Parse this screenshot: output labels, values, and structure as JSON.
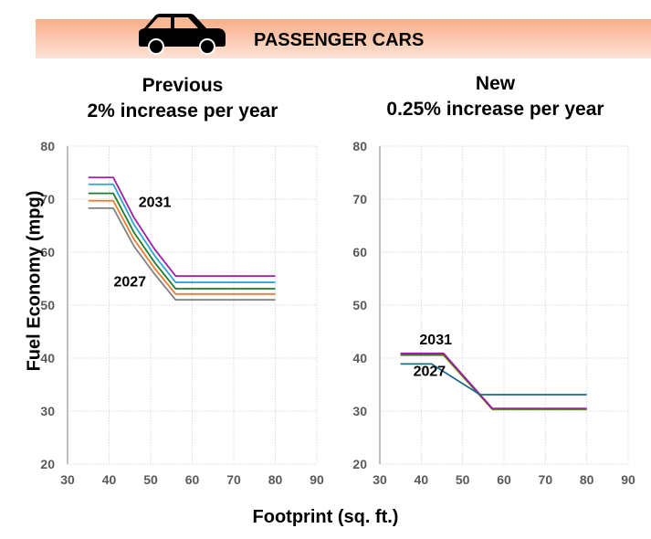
{
  "header": {
    "title": "PASSENGER CARS",
    "icon": "car-icon",
    "band_color": "#f8ae88"
  },
  "axes": {
    "ylabel": "Fuel Economy (mpg)",
    "xlabel": "Footprint (sq. ft.)"
  },
  "chart_data": [
    {
      "type": "line",
      "title_line1": "Previous",
      "title_line2": "2% increase per year",
      "xlim": [
        30,
        90
      ],
      "ylim": [
        20,
        80
      ],
      "xticks": [
        30,
        40,
        50,
        60,
        70,
        80,
        90
      ],
      "yticks": [
        20,
        30,
        40,
        50,
        60,
        70,
        80
      ],
      "grid": true,
      "annotations": [
        {
          "text": "2031",
          "x": 51,
          "y": 68.5
        },
        {
          "text": "2027",
          "x": 45,
          "y": 53.5
        }
      ],
      "x": [
        35,
        41,
        46,
        51,
        56,
        80
      ],
      "series": [
        {
          "color": "#9e1fa6",
          "values": [
            74.1,
            74.1,
            66.5,
            60.5,
            55.5,
            55.5
          ]
        },
        {
          "color": "#2aa7d9",
          "values": [
            72.8,
            72.8,
            65.2,
            59.3,
            54.3,
            54.3
          ]
        },
        {
          "color": "#1f7a2a",
          "values": [
            71.1,
            71.1,
            63.7,
            58.0,
            53.1,
            53.1
          ]
        },
        {
          "color": "#f07a33",
          "values": [
            69.7,
            69.7,
            62.4,
            56.9,
            52.1,
            52.1
          ]
        },
        {
          "color": "#808080",
          "values": [
            68.3,
            68.3,
            61.1,
            55.8,
            51.0,
            51.0
          ]
        }
      ]
    },
    {
      "type": "line",
      "title_line1": "New",
      "title_line2": "0.25% increase per year",
      "xlim": [
        30,
        90
      ],
      "ylim": [
        20,
        80
      ],
      "xticks": [
        30,
        40,
        50,
        60,
        70,
        80,
        90
      ],
      "yticks": [
        20,
        30,
        40,
        50,
        60,
        70,
        80
      ],
      "grid": true,
      "annotations": [
        {
          "text": "2031",
          "x": 43.5,
          "y": 42.6
        },
        {
          "text": "2027",
          "x": 42,
          "y": 36.6
        }
      ],
      "series": [
        {
          "color": "#c8a020",
          "x": [
            35,
            45.4,
            57.2,
            80
          ],
          "values": [
            40.5,
            40.5,
            30.3,
            30.3
          ]
        },
        {
          "color": "#1f7a2a",
          "x": [
            35,
            45.4,
            57.2,
            80
          ],
          "values": [
            40.7,
            40.7,
            30.4,
            30.4
          ]
        },
        {
          "color": "#9e1fa6",
          "x": [
            35,
            45.4,
            57.2,
            80
          ],
          "values": [
            40.9,
            40.9,
            30.5,
            30.5
          ]
        },
        {
          "color": "#1f6e8c",
          "x": [
            35,
            42.5,
            54.2,
            80
          ],
          "values": [
            38.9,
            38.9,
            33.1,
            33.1
          ]
        }
      ]
    }
  ]
}
